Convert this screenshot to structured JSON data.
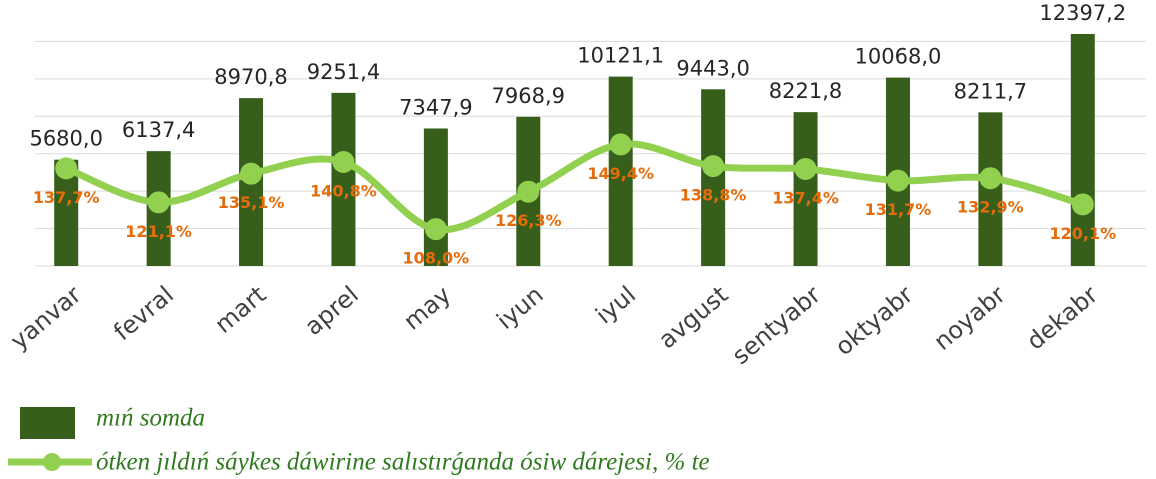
{
  "chart_data": {
    "type": "bar_line",
    "categories": [
      "yanvar",
      "fevral",
      "mart",
      "aprel",
      "may",
      "iyun",
      "iyul",
      "avgust",
      "sentyabr",
      "oktyabr",
      "noyabr",
      "dekabr"
    ],
    "ylim": [
      0,
      14000
    ],
    "yticks": [
      0,
      2000,
      4000,
      6000,
      8000,
      10000,
      12000
    ],
    "grid": true,
    "y2lim": [
      90,
      218
    ],
    "series": [
      {
        "name": "mıń somda",
        "type": "bar",
        "color": "#375f1b",
        "values": [
          5680.0,
          6137.4,
          8970.8,
          9251.4,
          7347.9,
          7968.9,
          10121.1,
          9443.0,
          8221.8,
          10068.0,
          8211.7,
          12397.2
        ],
        "value_labels": [
          "5680,0",
          "6137,4",
          "8970,8",
          "9251,4",
          "7347,9",
          "7968,9",
          "10121,1",
          "9443,0",
          "8221,8",
          "10068,0",
          "8211,7",
          "12397,2"
        ]
      },
      {
        "name": "ótken jıldıń sáykes dáwirine salıstırǵanda ósiw dárejesi, % te",
        "type": "line",
        "axis": "y2",
        "color": "#92d050",
        "label_color": "#e46c0a",
        "values": [
          137.7,
          121.1,
          135.1,
          140.8,
          108.0,
          126.3,
          149.4,
          138.8,
          137.4,
          131.7,
          132.9,
          120.1
        ],
        "value_labels": [
          "137,7%",
          "121,1%",
          "135,1%",
          "140,8%",
          "108,0%",
          "126,3%",
          "149,4%",
          "138,8%",
          "137,4%",
          "131,7%",
          "132,9%",
          "120,1%"
        ]
      }
    ]
  }
}
